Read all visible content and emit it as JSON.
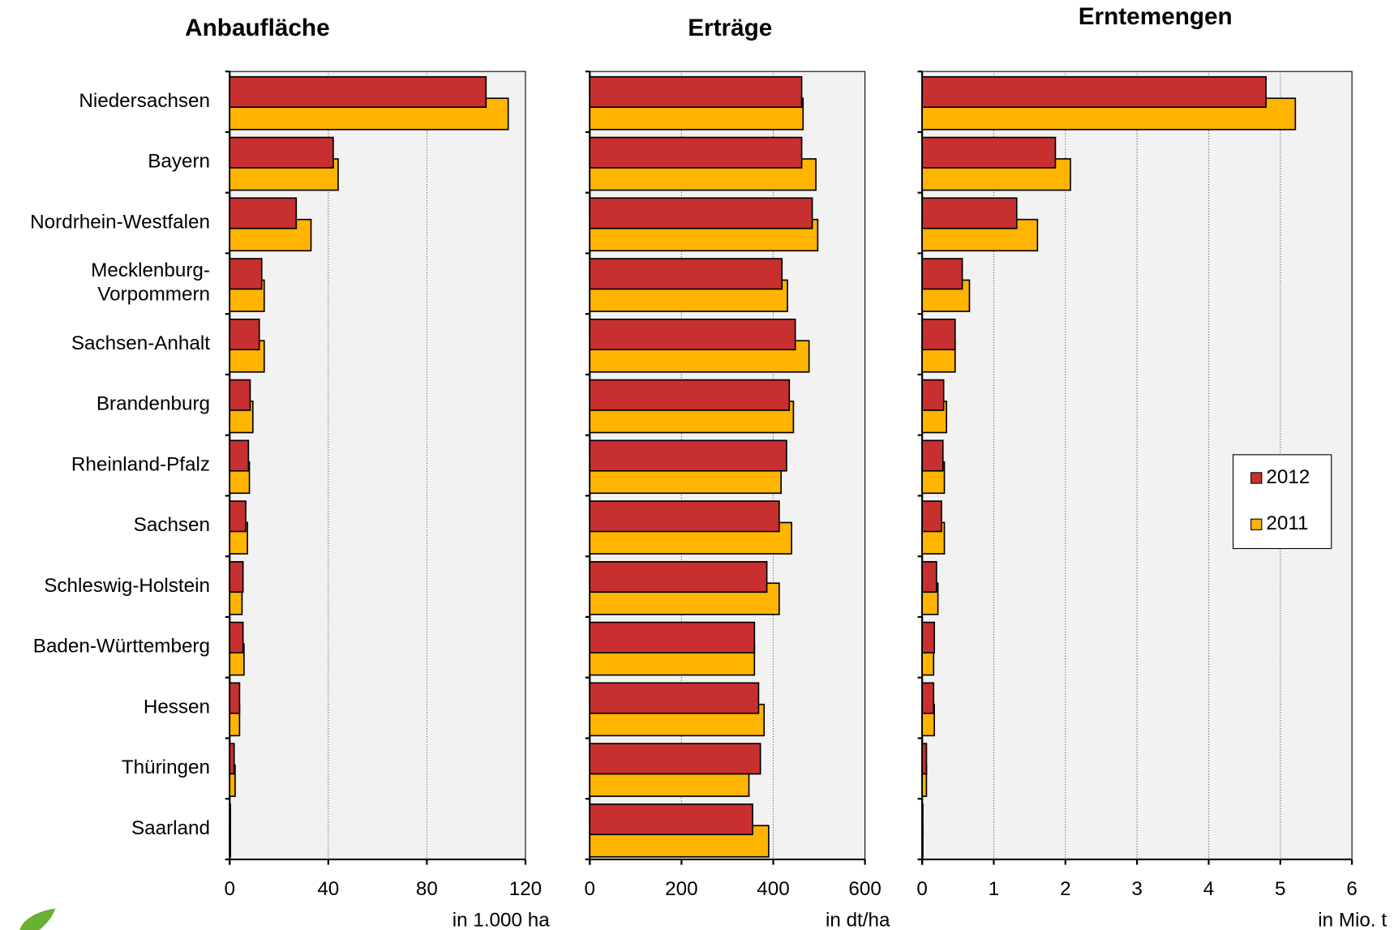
{
  "chart_data": [
    {
      "type": "bar",
      "orientation": "horizontal",
      "title": "Anbaufläche",
      "x_label": "in 1.000 ha",
      "categories": [
        "Niedersachsen",
        "Bayern",
        "Nordrhein-Westfalen",
        "Mecklenburg-\nVorpommern",
        "Sachsen-Anhalt",
        "Brandenburg",
        "Rheinland-Pfalz",
        "Sachsen",
        "Schleswig-Holstein",
        "Baden-Württemberg",
        "Hessen",
        "Thüringen",
        "Saarland"
      ],
      "series": [
        {
          "name": "2012",
          "color": "#c8302f",
          "values": [
            104,
            42,
            27,
            13,
            12,
            8.3,
            7.6,
            6.5,
            5.4,
            5.4,
            4,
            1.8,
            0.3
          ]
        },
        {
          "name": "2011",
          "color": "#ffb400",
          "values": [
            113,
            44,
            33,
            14,
            14,
            9.4,
            8,
            7.2,
            5,
            5.8,
            4,
            2.2,
            0.3
          ]
        }
      ],
      "xlim": [
        0,
        120
      ],
      "xticks": [
        0,
        40,
        80,
        120
      ],
      "grid": true
    },
    {
      "type": "bar",
      "orientation": "horizontal",
      "title": "Erträge",
      "x_label": "in dt/ha",
      "series": [
        {
          "name": "2012",
          "color": "#c8302f",
          "values": [
            462,
            462,
            485,
            419,
            448,
            435,
            429,
            413,
            386,
            359,
            368,
            372,
            355
          ]
        },
        {
          "name": "2011",
          "color": "#ffb400",
          "values": [
            465,
            493,
            497,
            431,
            478,
            444,
            417,
            440,
            413,
            359,
            380,
            347,
            390
          ]
        }
      ],
      "xlim": [
        0,
        600
      ],
      "xticks": [
        0,
        200,
        400,
        600
      ],
      "grid": true
    },
    {
      "type": "bar",
      "orientation": "horizontal",
      "title": "Erntemengen",
      "x_label": "in  Mio. t",
      "series": [
        {
          "name": "2012",
          "color": "#c8302f",
          "values": [
            4.8,
            1.86,
            1.32,
            0.56,
            0.46,
            0.3,
            0.29,
            0.27,
            0.2,
            0.17,
            0.16,
            0.06,
            0.01
          ]
        },
        {
          "name": "2011",
          "color": "#ffb400",
          "values": [
            5.21,
            2.07,
            1.61,
            0.66,
            0.46,
            0.34,
            0.31,
            0.31,
            0.22,
            0.16,
            0.17,
            0.06,
            0.01
          ]
        }
      ],
      "xlim": [
        0,
        6
      ],
      "xticks": [
        0,
        1,
        2,
        3,
        4,
        5,
        6
      ],
      "grid": true,
      "legend": "right"
    }
  ]
}
